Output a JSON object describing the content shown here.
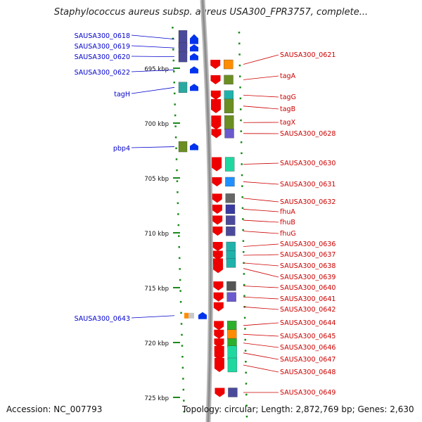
{
  "title": "Staphylococcus aureus subsp. aureus USA300_FPR3757, complete...",
  "footer": {
    "accession": "Accession: NC_007793",
    "topology": "Topology: circular; Length: 2,872,769 bp; Genes: 2,630"
  },
  "colors": {
    "left_label": "#0000cc",
    "right_label": "#cc0000",
    "scale_ticks": "#1a8a1a",
    "backbone": "#999999",
    "forward_arrow": "#0033ee",
    "reverse_arrow": "#ee0000"
  },
  "scale": {
    "unit": "kbp",
    "labels": [
      {
        "text": "695 kbp",
        "value": 695
      },
      {
        "text": "700 kbp",
        "value": 700
      },
      {
        "text": "705 kbp",
        "value": 705
      },
      {
        "text": "710 kbp",
        "value": 710
      },
      {
        "text": "715 kbp",
        "value": 715
      },
      {
        "text": "720 kbp",
        "value": 720
      },
      {
        "text": "725 kbp",
        "value": 725
      }
    ]
  },
  "genes_forward": [
    {
      "label": "SAUSA300_0618",
      "pos": 692.35,
      "color": "#4b4a9a",
      "count": 2
    },
    {
      "label": "SAUSA300_0619",
      "pos": 693.15,
      "color": "#4b4a9a",
      "count": 1
    },
    {
      "label": "SAUSA300_0620",
      "pos": 693.95,
      "color": "#4b4a9a",
      "count": 1
    },
    {
      "label": "SAUSA300_0622",
      "pos": 695.15,
      "color": "#ffffff",
      "count": 0
    },
    {
      "label": "tagH",
      "pos": 696.75,
      "color": "#2ba9a0",
      "count": 1
    },
    {
      "label": "pbp4",
      "pos": 702.15,
      "color": "#6b8e23",
      "count": 1
    },
    {
      "label": "SAUSA300_0643",
      "pos": 717.55,
      "color": "#ff8c00",
      "count": 0
    }
  ],
  "genes_reverse": [
    {
      "label": "SAUSA300_0621",
      "pos": 694.65,
      "color": "#ff8c00"
    },
    {
      "label": "tagA",
      "pos": 696.05,
      "color": "#6b8e23"
    },
    {
      "label": "tagG",
      "pos": 697.45,
      "color": "#20b2aa"
    },
    {
      "label": "tagB",
      "pos": 698.45,
      "color": "#6b8e23"
    },
    {
      "label": "tagX",
      "pos": 699.95,
      "color": "#6b8e23"
    },
    {
      "label": "SAUSA300_0628",
      "pos": 700.95,
      "color": "#6a5acd"
    },
    {
      "label": "SAUSA300_0630",
      "pos": 703.75,
      "color": "#1fd8a0"
    },
    {
      "label": "SAUSA300_0631",
      "pos": 705.35,
      "color": "#1e90ff"
    },
    {
      "label": "SAUSA300_0632",
      "pos": 706.85,
      "color": "#666666"
    },
    {
      "label": "fhuA",
      "pos": 707.85,
      "color": "#3a3aa0"
    },
    {
      "label": "fhuB",
      "pos": 708.85,
      "color": "#4b4a9a"
    },
    {
      "label": "fhuG",
      "pos": 709.85,
      "color": "#4b4a9a"
    },
    {
      "label": "SAUSA300_0636",
      "pos": 711.25,
      "color": "#20b2aa"
    },
    {
      "label": "SAUSA300_0637",
      "pos": 712.05,
      "color": "#20b2aa"
    },
    {
      "label": "SAUSA300_0638",
      "pos": 712.75,
      "color": "#20b2aa"
    },
    {
      "label": "SAUSA300_0639",
      "pos": 713.25,
      "color": "#ee0000"
    },
    {
      "label": "SAUSA300_0640",
      "pos": 714.85,
      "color": "#555555"
    },
    {
      "label": "SAUSA300_0641",
      "pos": 715.85,
      "color": "#6a5acd"
    },
    {
      "label": "SAUSA300_0642",
      "pos": 716.75,
      "color": "#ee0000"
    },
    {
      "label": "SAUSA300_0644",
      "pos": 718.45,
      "color": "#2bb02b"
    },
    {
      "label": "SAUSA300_0645",
      "pos": 719.25,
      "color": "#ff8c00"
    },
    {
      "label": "SAUSA300_0646",
      "pos": 720.05,
      "color": "#2bb02b"
    },
    {
      "label": "SAUSA300_0647",
      "pos": 720.95,
      "color": "#1fd8a0"
    },
    {
      "label": "SAUSA300_0648",
      "pos": 722.05,
      "color": "#1fd8a0"
    },
    {
      "label": "SAUSA300_0649",
      "pos": 724.55,
      "color": "#4b4a9a"
    }
  ]
}
